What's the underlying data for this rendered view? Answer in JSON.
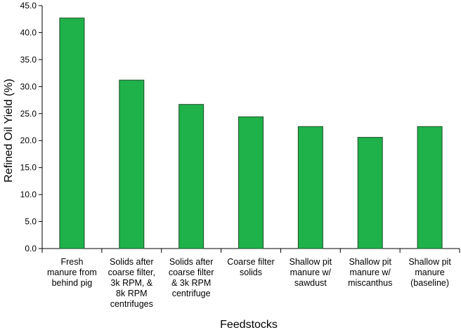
{
  "chart_data": {
    "type": "bar",
    "title": "",
    "xlabel": "Feedstocks",
    "ylabel": "Refined Oil Yield  (%)",
    "ylim": [
      0,
      45
    ],
    "y_ticks": [
      "0.0",
      "5.0",
      "10.0",
      "15.0",
      "20.0",
      "25.0",
      "30.0",
      "35.0",
      "40.0",
      "45.0"
    ],
    "grid": false,
    "legend": "none",
    "bar_color": "#1fb24a",
    "bar_edge_color": "#1a4d2a",
    "categories": [
      [
        "Fresh",
        "manure from",
        "behind pig"
      ],
      [
        "Solids after",
        "coarse filter,",
        "3k RPM, &",
        "8k RPM",
        "centrifuges"
      ],
      [
        "Solids after",
        "coarse filter",
        "& 3k RPM",
        "centrifuge"
      ],
      [
        "Coarse filter",
        "solids"
      ],
      [
        "Shallow pit",
        "manure w/",
        "sawdust"
      ],
      [
        "Shallow pit",
        "manure w/",
        "miscanthus"
      ],
      [
        "Shallow pit",
        "manure",
        "(baseline)"
      ]
    ],
    "values": [
      42.7,
      31.2,
      26.7,
      24.4,
      22.6,
      20.6,
      22.6
    ]
  }
}
